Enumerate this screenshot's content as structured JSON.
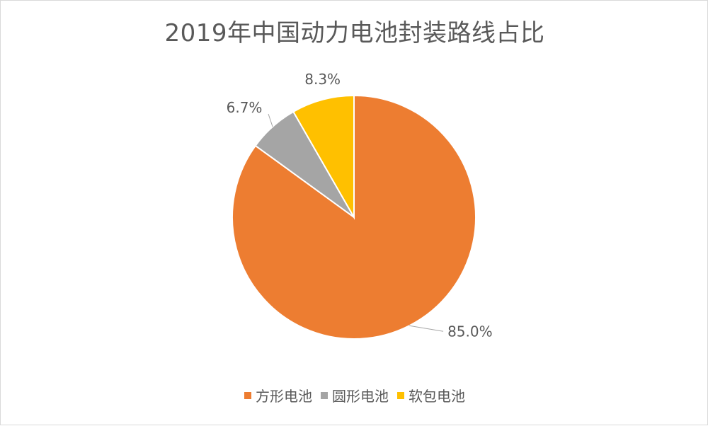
{
  "chart_data": {
    "type": "pie",
    "title": "2019年中国动力电池封装路线占比",
    "categories": [
      "方形电池",
      "圆形电池",
      "软包电池"
    ],
    "values": [
      85.0,
      6.7,
      8.3
    ],
    "value_labels": [
      "85.0%",
      "6.7%",
      "8.3%"
    ],
    "colors": [
      "#ED7D31",
      "#A5A5A5",
      "#FFC000"
    ],
    "legend_position": "bottom"
  }
}
